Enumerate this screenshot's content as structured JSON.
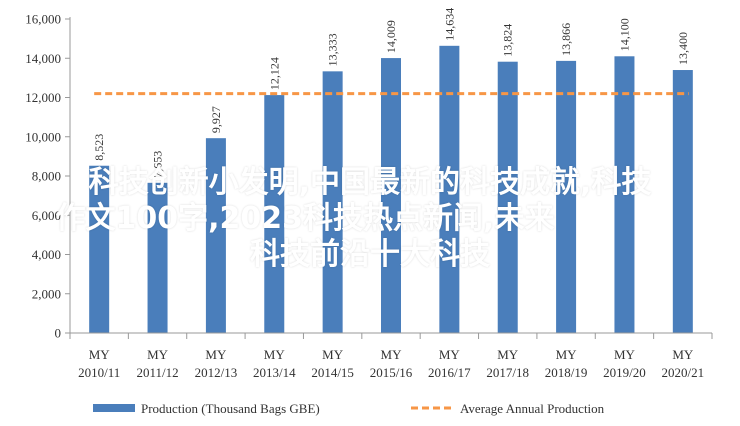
{
  "chart_data": {
    "type": "bar",
    "categories": [
      "MY 2010/11",
      "MY 2011/12",
      "MY 2012/13",
      "MY 2013/14",
      "MY 2014/15",
      "MY 2015/16",
      "MY 2016/17",
      "MY 2017/18",
      "MY 2018/19",
      "MY 2019/20",
      "MY 2020/21"
    ],
    "category_lines": [
      [
        "MY",
        "2010/11"
      ],
      [
        "MY",
        "2011/12"
      ],
      [
        "MY",
        "2012/13"
      ],
      [
        "MY",
        "2013/14"
      ],
      [
        "MY",
        "2014/15"
      ],
      [
        "MY",
        "2015/16"
      ],
      [
        "MY",
        "2016/17"
      ],
      [
        "MY",
        "2017/18"
      ],
      [
        "MY",
        "2018/19"
      ],
      [
        "MY",
        "2019/20"
      ],
      [
        "MY",
        "2020/21"
      ]
    ],
    "series": [
      {
        "name": "Production (Thousand Bags GBE)",
        "type": "bar",
        "color": "#4a7ebb",
        "values": [
          8523,
          7653,
          9927,
          12124,
          13333,
          14009,
          14634,
          13824,
          13866,
          14100,
          13400
        ],
        "labels": [
          "8,523",
          "7,653",
          "9,927",
          "12,124",
          "13,333",
          "14,009",
          "14,634",
          "13,824",
          "13,866",
          "14,100",
          "13,400"
        ]
      },
      {
        "name": "Average Annual Production",
        "type": "line",
        "style": "dashed",
        "color": "#f79646",
        "value": 12200
      }
    ],
    "ylim": [
      0,
      16000
    ],
    "yticks": [
      0,
      2000,
      4000,
      6000,
      8000,
      10000,
      12000,
      14000,
      16000
    ],
    "ytick_labels": [
      "0",
      "2,000",
      "4,000",
      "6,000",
      "8,000",
      "10,000",
      "12,000",
      "14,000",
      "16,000"
    ],
    "legend_position": "bottom",
    "grid": false
  },
  "overlay_text": {
    "line1": "科技创新小发明,中国最新的科技成就,科技",
    "line2": "作文100字,2023科技热点新闻,未来",
    "line3": "科技前沿十大科技"
  }
}
